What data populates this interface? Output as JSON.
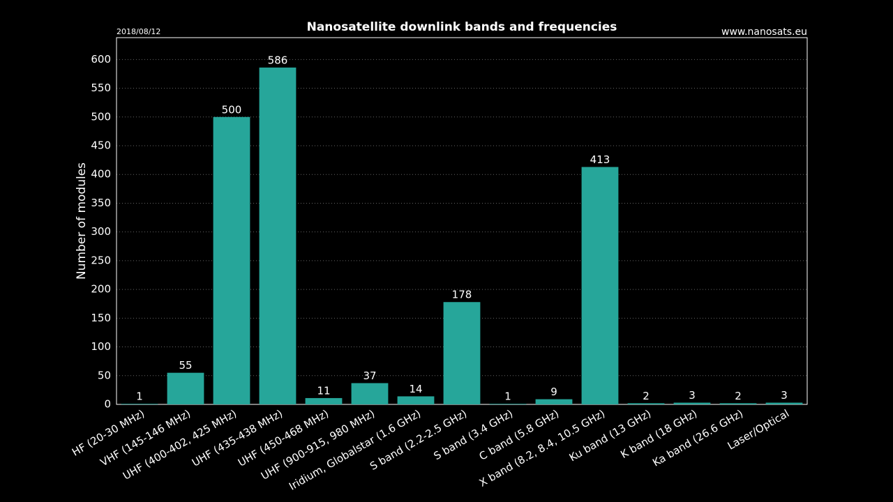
{
  "chart_data": {
    "type": "bar",
    "title": "Nanosatellite downlink bands and frequencies",
    "date": "2018/08/12",
    "source": "www.nanosats.eu",
    "y_label": "Number of modules",
    "categories": [
      "HF (20-30 MHz)",
      "VHF (145-146 MHz)",
      "UHF (400-402, 425 MHz)",
      "UHF (435-438 MHz)",
      "UHF (450-468 MHz)",
      "UHF (900-915, 980 MHz)",
      "Iridium, Globalstar (1.6 GHz)",
      "S band (2.2-2.5 GHz)",
      "S band (3.4 GHz)",
      "C band (5.8 GHz)",
      "X band (8.2, 8.4, 10.5 GHz)",
      "Ku band (13 GHz)",
      "K band (18 GHz)",
      "Ka band (26.6 GHz)",
      "Laser/Optical"
    ],
    "values": [
      1,
      55,
      500,
      586,
      11,
      37,
      14,
      178,
      1,
      9,
      413,
      2,
      3,
      2,
      3
    ],
    "color": "#26a69a",
    "ylim": [
      0,
      638
    ],
    "yticks": [
      0,
      50,
      100,
      150,
      200,
      250,
      300,
      350,
      400,
      450,
      500,
      550,
      600
    ],
    "grid": true
  }
}
